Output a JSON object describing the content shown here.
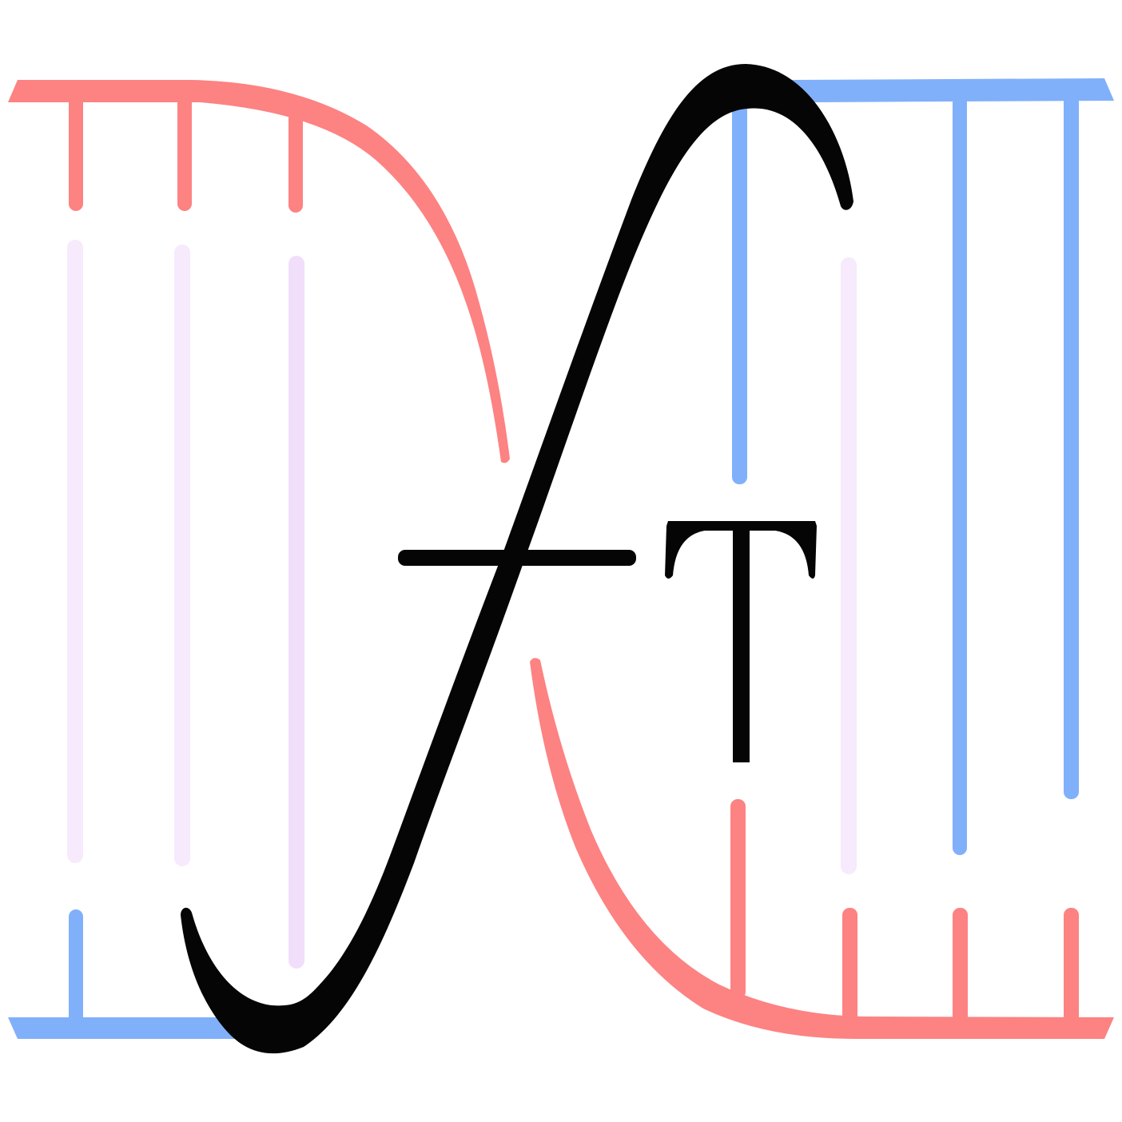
{
  "logo": {
    "glyph_integral": "integral-sign",
    "glyph_superscript": "transpose-T",
    "colors": {
      "red": "#FD8282",
      "blue": "#81B0FB",
      "lavender_light": "#F6EAFC",
      "lavender": "#F1DEFB",
      "ink": "#050505",
      "background": "#FFFFFF"
    }
  }
}
